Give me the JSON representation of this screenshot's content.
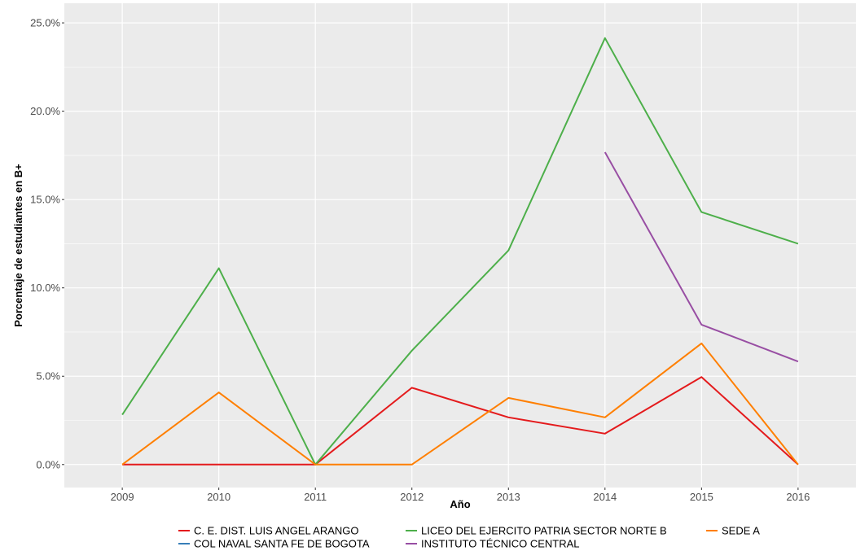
{
  "chart_data": {
    "type": "line",
    "title": "",
    "xlabel": "Año",
    "ylabel": "Porcentaje de estudiantes en B+",
    "x": [
      2009,
      2010,
      2011,
      2012,
      2013,
      2014,
      2015,
      2016
    ],
    "x_tick_labels": [
      "2009",
      "2010",
      "2011",
      "2012",
      "2013",
      "2014",
      "2015",
      "2016"
    ],
    "ylim": [
      -0.013,
      0.25
    ],
    "y_ticks": [
      0,
      0.05,
      0.1,
      0.15,
      0.2,
      0.25
    ],
    "y_tick_labels": [
      "0.0%",
      "5.0%",
      "10.0%",
      "15.0%",
      "20.0%",
      "25.0%"
    ],
    "grid": true,
    "legend_position": "bottom",
    "series": [
      {
        "name": "C. E. DIST. LUIS ANGEL ARANGO",
        "color": "#E41A1C",
        "values": [
          0,
          0,
          0,
          0.0435,
          0.0267,
          0.0175,
          0.0495,
          0
        ]
      },
      {
        "name": "COL NAVAL SANTA FE DE BOGOTA",
        "color": "#377EB8",
        "values": [
          null,
          null,
          null,
          null,
          null,
          null,
          null,
          null
        ]
      },
      {
        "name": "LICEO DEL EJERCITO PATRIA SECTOR NORTE B",
        "color": "#4DAF4A",
        "values": [
          0.0282,
          0.1111,
          0,
          0.0645,
          0.1212,
          0.2414,
          0.1429,
          0.125
        ]
      },
      {
        "name": "INSTITUTO TÉCNICO CENTRAL",
        "color": "#984EA3",
        "values": [
          null,
          null,
          null,
          null,
          null,
          0.1768,
          0.0792,
          0.0583
        ]
      },
      {
        "name": "SEDE A",
        "color": "#FF7F00",
        "values": [
          0,
          0.0408,
          0,
          0,
          0.0377,
          0.0267,
          0.0686,
          0
        ]
      }
    ]
  }
}
